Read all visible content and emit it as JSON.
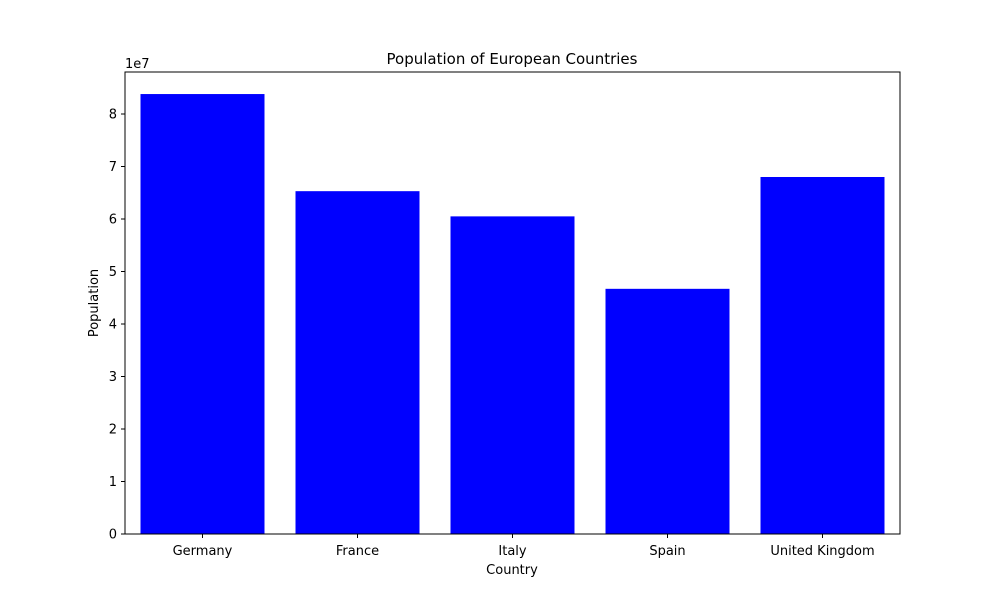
{
  "chart_data": {
    "type": "bar",
    "title": "Population of European Countries",
    "xlabel": "Country",
    "ylabel": "Population",
    "offset_label": "1e7",
    "categories": [
      "Germany",
      "France",
      "Italy",
      "Spain",
      "United Kingdom"
    ],
    "values": [
      83800000,
      65300000,
      60500000,
      46700000,
      68000000
    ],
    "ylim": [
      0,
      88000000
    ],
    "yticks": [
      0,
      10000000,
      20000000,
      30000000,
      40000000,
      50000000,
      60000000,
      70000000,
      80000000
    ],
    "ytick_labels": [
      "0",
      "1",
      "2",
      "3",
      "4",
      "5",
      "6",
      "7",
      "8"
    ],
    "bar_color": "#0000ff",
    "grid": false,
    "legend": "none"
  }
}
